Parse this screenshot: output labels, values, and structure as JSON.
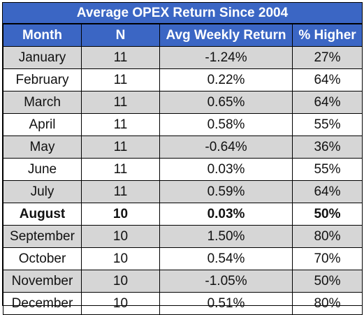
{
  "title": "Average OPEX Return Since 2004",
  "chart_data": {
    "type": "table",
    "title": "Average OPEX Return Since 2004",
    "columns": [
      "Month",
      "N",
      "Avg Weekly Return",
      "% Higher"
    ],
    "rows": [
      [
        "January",
        "11",
        "-1.24%",
        "27%"
      ],
      [
        "February",
        "11",
        "0.22%",
        "64%"
      ],
      [
        "March",
        "11",
        "0.65%",
        "64%"
      ],
      [
        "April",
        "11",
        "0.58%",
        "55%"
      ],
      [
        "May",
        "11",
        "-0.64%",
        "36%"
      ],
      [
        "June",
        "11",
        "0.03%",
        "55%"
      ],
      [
        "July",
        "11",
        "0.59%",
        "64%"
      ],
      [
        "August",
        "10",
        "0.03%",
        "50%"
      ],
      [
        "September",
        "10",
        "1.50%",
        "80%"
      ],
      [
        "October",
        "10",
        "0.54%",
        "70%"
      ],
      [
        "November",
        "10",
        "-1.05%",
        "50%"
      ],
      [
        "December",
        "10",
        "0.51%",
        "80%"
      ]
    ],
    "highlighted_row": "August"
  },
  "colors": {
    "header_bg": "#3b66c4",
    "header_text": "#ffffff",
    "alt_row_bg": "#d6d6d6"
  }
}
